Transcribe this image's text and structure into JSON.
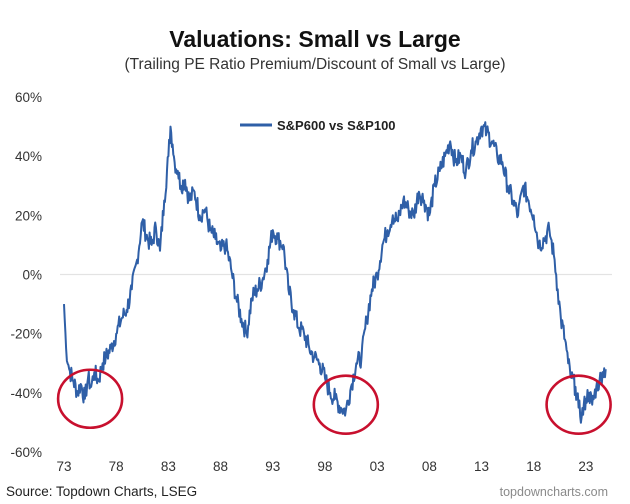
{
  "chart_data": {
    "type": "line",
    "title": "Valuations: Small vs Large",
    "subtitle": "(Trailing PE Ratio Premium/Discount of Small vs Large)",
    "xlabel": "",
    "ylabel": "",
    "x_ticks": [
      "73",
      "78",
      "83",
      "88",
      "93",
      "98",
      "03",
      "08",
      "13",
      "18",
      "23"
    ],
    "xlim": [
      1973,
      2025.5
    ],
    "y_ticks": [
      "60%",
      "40%",
      "20%",
      "0%",
      "-20%",
      "-40%",
      "-60%"
    ],
    "y_tick_values": [
      60,
      40,
      20,
      0,
      -20,
      -40,
      -60
    ],
    "ylim": [
      -60,
      60
    ],
    "zero_line": true,
    "legend": "top-center",
    "series": [
      {
        "name": "S&P600 vs S&P100",
        "color": "#2f5fa7",
        "x": [
          1973.0,
          1973.2,
          1973.5,
          1973.9,
          1974.3,
          1974.6,
          1975.0,
          1975.3,
          1975.6,
          1975.9,
          1976.3,
          1976.7,
          1977.0,
          1977.5,
          1978.0,
          1978.5,
          1979.0,
          1979.5,
          1980.0,
          1980.5,
          1981.0,
          1981.4,
          1981.8,
          1982.2,
          1982.6,
          1983.0,
          1983.2,
          1983.4,
          1983.6,
          1983.9,
          1984.2,
          1984.6,
          1985.0,
          1985.5,
          1986.0,
          1986.5,
          1987.0,
          1987.5,
          1988.0,
          1988.5,
          1989.0,
          1989.5,
          1990.0,
          1990.5,
          1991.0,
          1991.5,
          1992.0,
          1992.5,
          1993.0,
          1993.5,
          1994.0,
          1994.5,
          1995.0,
          1995.5,
          1996.0,
          1996.5,
          1997.0,
          1997.5,
          1998.0,
          1998.5,
          1999.0,
          1999.5,
          2000.0,
          2000.5,
          2001.0,
          2001.5,
          2002.0,
          2002.5,
          2003.0,
          2003.5,
          2004.0,
          2004.5,
          2005.0,
          2005.5,
          2006.0,
          2006.5,
          2007.0,
          2007.5,
          2008.0,
          2008.5,
          2009.0,
          2009.5,
          2010.0,
          2010.5,
          2011.0,
          2011.5,
          2012.0,
          2012.5,
          2013.0,
          2013.5,
          2014.0,
          2014.5,
          2015.0,
          2015.5,
          2016.0,
          2016.5,
          2017.0,
          2017.5,
          2018.0,
          2018.5,
          2019.0,
          2019.5,
          2020.0,
          2020.3,
          2020.6,
          2021.0,
          2021.3,
          2021.6,
          2022.0,
          2022.3,
          2022.6,
          2023.0,
          2023.3,
          2023.6,
          2024.0,
          2024.3,
          2024.6,
          2024.9
        ],
        "values": [
          -10,
          -25,
          -32,
          -36,
          -40,
          -37,
          -42,
          -35,
          -38,
          -33,
          -36,
          -30,
          -28,
          -25,
          -20,
          -15,
          -12,
          -5,
          5,
          18,
          12,
          10,
          16,
          8,
          25,
          40,
          50,
          44,
          38,
          35,
          30,
          32,
          25,
          28,
          20,
          22,
          15,
          12,
          8,
          10,
          2,
          -8,
          -15,
          -20,
          -8,
          -5,
          -2,
          5,
          15,
          12,
          10,
          -5,
          -12,
          -18,
          -20,
          -25,
          -28,
          -30,
          -35,
          -40,
          -42,
          -45,
          -46,
          -38,
          -30,
          -28,
          -15,
          -5,
          0,
          10,
          15,
          20,
          18,
          25,
          22,
          20,
          28,
          25,
          20,
          30,
          35,
          40,
          45,
          38,
          40,
          35,
          42,
          45,
          50,
          48,
          45,
          40,
          38,
          30,
          25,
          20,
          30,
          25,
          20,
          10,
          12,
          15,
          5,
          -5,
          -15,
          -22,
          -30,
          -35,
          -38,
          -45,
          -48,
          -42,
          -40,
          -44,
          -38,
          -36,
          -33,
          -32
        ]
      }
    ],
    "annotations": [
      {
        "type": "circle",
        "x": 1975.5,
        "y": -42,
        "color": "#c8102e"
      },
      {
        "type": "circle",
        "x": 2000.0,
        "y": -44,
        "color": "#c8102e"
      },
      {
        "type": "circle",
        "x": 2022.3,
        "y": -44,
        "color": "#c8102e"
      }
    ]
  },
  "footer": {
    "source": "Source: Topdown Charts, LSEG",
    "brand": "topdowncharts.com"
  }
}
